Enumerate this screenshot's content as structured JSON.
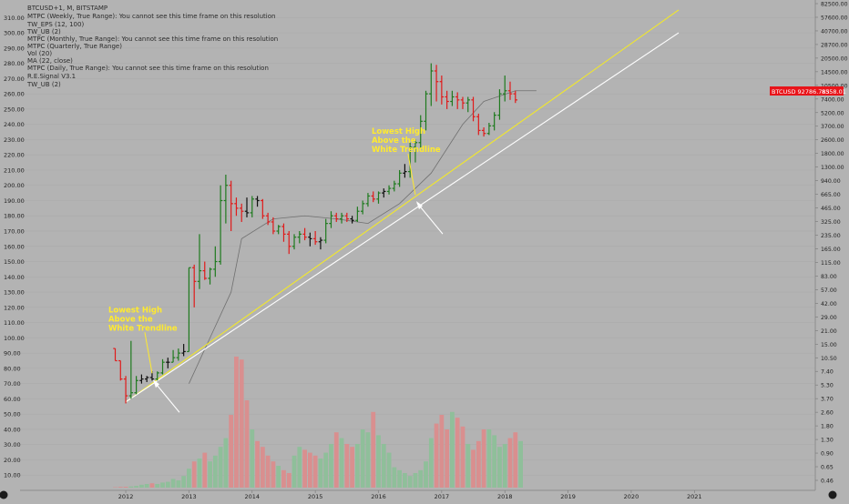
{
  "header": {
    "symbol_line": "BTCUSD+1, M, BITSTAMP",
    "indicators": [
      "MTPC (Weekly, True Range): You cannot see this time frame on this resolution",
      "TW_EPS (12, 100)",
      "TW_UB (2)",
      "MTPC (Monthly, True Range): You cannot see this time frame on this resolution",
      "MTPC (Quarterly, True Range)",
      "Vol (20)",
      "MA (22, close)",
      "MTPC (Daily, True Range): You cannot see this time frame on this resolution",
      "R.E.Signal V3.1",
      "TW_UB (2)"
    ]
  },
  "annotations": [
    {
      "text_lines": [
        "Lowest High",
        "Above the",
        "White Trendline"
      ],
      "anchor_month": 7,
      "anchor_left_value": 75
    },
    {
      "text_lines": [
        "Lowest High",
        "Above the",
        "White Trendline"
      ],
      "anchor_month": 57,
      "anchor_left_value": 192
    }
  ],
  "price_badge": {
    "label": "BTCUSD 92786.785",
    "value": "8358.01"
  },
  "colors": {
    "background": "#b3b3b3",
    "up": "#1e7a1e",
    "down": "#e01a1a",
    "neutral": "#111111",
    "yellow_trendline": "#f2e82a",
    "white_trendline": "#ffffff",
    "ma_line": "#707070",
    "volume_up": "#8fbf9a",
    "volume_down": "#d98f8f",
    "annotation_text": "#ffea2e",
    "badge_bg": "#e8141a"
  },
  "chart_data": {
    "type": "bar",
    "title": "BTCUSD+1, M, BITSTAMP",
    "x_ticks": [
      "2012",
      "2013",
      "2014",
      "2015",
      "2016",
      "2017",
      "2018",
      "2019",
      "2020",
      "2021"
    ],
    "x_tick_months": [
      2,
      14,
      26,
      38,
      50,
      62,
      74,
      86,
      98,
      110
    ],
    "left_axis": {
      "range": [
        0,
        310
      ],
      "ticks": [
        10,
        20,
        30,
        40,
        50,
        60,
        70,
        80,
        90,
        100,
        110,
        120,
        130,
        140,
        150,
        160,
        170,
        180,
        190,
        200,
        210,
        220,
        230,
        240,
        250,
        260,
        270,
        280,
        290,
        300,
        310
      ]
    },
    "right_axis": {
      "scale": "log",
      "labels": [
        "82500.00",
        "57600.00",
        "40700.00",
        "28700.00",
        "20500.00",
        "14500.00",
        "10500.00",
        "7400.00",
        "5200.00",
        "3700.00",
        "2600.00",
        "1800.00",
        "1300.00",
        "940.00",
        "665.00",
        "465.00",
        "325.00",
        "235.00",
        "165.00",
        "115.00",
        "83.00",
        "57.00",
        "42.00",
        "29.00",
        "21.00",
        "15.00",
        "10.50",
        "7.40",
        "5.30",
        "3.70",
        "2.60",
        "1.80",
        "1.30",
        "0.90",
        "0.65",
        "0.46"
      ]
    },
    "yellow_trendline": {
      "points": [
        [
          2,
          58
        ],
        [
          107,
          315
        ]
      ]
    },
    "white_trendline": {
      "points": [
        [
          2,
          58
        ],
        [
          107,
          300
        ]
      ]
    },
    "ma_22": {
      "points": [
        [
          14,
          70
        ],
        [
          18,
          100
        ],
        [
          22,
          130
        ],
        [
          24,
          165
        ],
        [
          30,
          178
        ],
        [
          36,
          180
        ],
        [
          42,
          178
        ],
        [
          48,
          175
        ],
        [
          54,
          188
        ],
        [
          60,
          208
        ],
        [
          66,
          240
        ],
        [
          70,
          255
        ],
        [
          76,
          262
        ],
        [
          80,
          262
        ]
      ]
    },
    "candles": [
      {
        "o": 93,
        "h": 93,
        "l": 85,
        "c": 85
      },
      {
        "o": 85,
        "h": 85,
        "l": 72,
        "c": 73
      },
      {
        "o": 73,
        "h": 75,
        "l": 57,
        "c": 62
      },
      {
        "o": 62,
        "h": 98,
        "l": 60,
        "c": 64
      },
      {
        "o": 64,
        "h": 75,
        "l": 63,
        "c": 72
      },
      {
        "o": 72,
        "h": 76,
        "l": 70,
        "c": 73
      },
      {
        "o": 73,
        "h": 75,
        "l": 71,
        "c": 74
      },
      {
        "o": 74,
        "h": 78,
        "l": 72,
        "c": 73
      },
      {
        "o": 73,
        "h": 78,
        "l": 72,
        "c": 77
      },
      {
        "o": 77,
        "h": 86,
        "l": 76,
        "c": 84
      },
      {
        "o": 84,
        "h": 87,
        "l": 80,
        "c": 84
      },
      {
        "o": 84,
        "h": 92,
        "l": 84,
        "c": 87
      },
      {
        "o": 87,
        "h": 93,
        "l": 85,
        "c": 90
      },
      {
        "o": 90,
        "h": 96,
        "l": 88,
        "c": 91
      },
      {
        "o": 91,
        "h": 146,
        "l": 91,
        "c": 146
      },
      {
        "o": 146,
        "h": 148,
        "l": 120,
        "c": 137
      },
      {
        "o": 137,
        "h": 168,
        "l": 132,
        "c": 144
      },
      {
        "o": 144,
        "h": 150,
        "l": 138,
        "c": 139
      },
      {
        "o": 139,
        "h": 146,
        "l": 135,
        "c": 145
      },
      {
        "o": 145,
        "h": 160,
        "l": 140,
        "c": 150
      },
      {
        "o": 150,
        "h": 200,
        "l": 148,
        "c": 190
      },
      {
        "o": 190,
        "h": 207,
        "l": 175,
        "c": 200
      },
      {
        "o": 200,
        "h": 203,
        "l": 170,
        "c": 188
      },
      {
        "o": 188,
        "h": 192,
        "l": 180,
        "c": 185
      },
      {
        "o": 185,
        "h": 188,
        "l": 176,
        "c": 183
      },
      {
        "o": 183,
        "h": 192,
        "l": 179,
        "c": 182
      },
      {
        "o": 182,
        "h": 193,
        "l": 179,
        "c": 191
      },
      {
        "o": 191,
        "h": 193,
        "l": 186,
        "c": 190
      },
      {
        "o": 190,
        "h": 191,
        "l": 178,
        "c": 180
      },
      {
        "o": 180,
        "h": 182,
        "l": 174,
        "c": 176
      },
      {
        "o": 176,
        "h": 179,
        "l": 168,
        "c": 170
      },
      {
        "o": 170,
        "h": 174,
        "l": 168,
        "c": 173
      },
      {
        "o": 173,
        "h": 175,
        "l": 163,
        "c": 168
      },
      {
        "o": 168,
        "h": 170,
        "l": 155,
        "c": 160
      },
      {
        "o": 160,
        "h": 168,
        "l": 158,
        "c": 166
      },
      {
        "o": 166,
        "h": 170,
        "l": 162,
        "c": 168
      },
      {
        "o": 168,
        "h": 172,
        "l": 164,
        "c": 166
      },
      {
        "o": 166,
        "h": 169,
        "l": 160,
        "c": 165
      },
      {
        "o": 165,
        "h": 170,
        "l": 161,
        "c": 163
      },
      {
        "o": 163,
        "h": 166,
        "l": 158,
        "c": 164
      },
      {
        "o": 164,
        "h": 178,
        "l": 162,
        "c": 175
      },
      {
        "o": 175,
        "h": 183,
        "l": 172,
        "c": 180
      },
      {
        "o": 180,
        "h": 182,
        "l": 176,
        "c": 178
      },
      {
        "o": 178,
        "h": 182,
        "l": 175,
        "c": 180
      },
      {
        "o": 180,
        "h": 182,
        "l": 176,
        "c": 178
      },
      {
        "o": 178,
        "h": 180,
        "l": 175,
        "c": 177
      },
      {
        "o": 177,
        "h": 186,
        "l": 176,
        "c": 183
      },
      {
        "o": 183,
        "h": 190,
        "l": 181,
        "c": 188
      },
      {
        "o": 188,
        "h": 195,
        "l": 186,
        "c": 193
      },
      {
        "o": 193,
        "h": 196,
        "l": 189,
        "c": 191
      },
      {
        "o": 191,
        "h": 196,
        "l": 188,
        "c": 195
      },
      {
        "o": 195,
        "h": 198,
        "l": 192,
        "c": 196
      },
      {
        "o": 196,
        "h": 200,
        "l": 194,
        "c": 198
      },
      {
        "o": 198,
        "h": 203,
        "l": 196,
        "c": 201
      },
      {
        "o": 201,
        "h": 210,
        "l": 199,
        "c": 208
      },
      {
        "o": 208,
        "h": 214,
        "l": 205,
        "c": 209
      },
      {
        "o": 209,
        "h": 228,
        "l": 205,
        "c": 225
      },
      {
        "o": 225,
        "h": 230,
        "l": 215,
        "c": 228
      },
      {
        "o": 228,
        "h": 246,
        "l": 224,
        "c": 242
      },
      {
        "o": 242,
        "h": 262,
        "l": 236,
        "c": 260
      },
      {
        "o": 260,
        "h": 280,
        "l": 252,
        "c": 275
      },
      {
        "o": 275,
        "h": 279,
        "l": 255,
        "c": 268
      },
      {
        "o": 268,
        "h": 272,
        "l": 253,
        "c": 258
      },
      {
        "o": 258,
        "h": 262,
        "l": 250,
        "c": 255
      },
      {
        "o": 255,
        "h": 262,
        "l": 252,
        "c": 258
      },
      {
        "o": 258,
        "h": 261,
        "l": 250,
        "c": 256
      },
      {
        "o": 256,
        "h": 258,
        "l": 250,
        "c": 254
      },
      {
        "o": 254,
        "h": 258,
        "l": 248,
        "c": 256
      },
      {
        "o": 256,
        "h": 258,
        "l": 242,
        "c": 245
      },
      {
        "o": 245,
        "h": 247,
        "l": 233,
        "c": 236
      },
      {
        "o": 236,
        "h": 238,
        "l": 232,
        "c": 234
      },
      {
        "o": 234,
        "h": 241,
        "l": 233,
        "c": 239
      },
      {
        "o": 239,
        "h": 248,
        "l": 236,
        "c": 246
      },
      {
        "o": 246,
        "h": 263,
        "l": 243,
        "c": 260
      },
      {
        "o": 260,
        "h": 272,
        "l": 255,
        "c": 262
      },
      {
        "o": 262,
        "h": 268,
        "l": 256,
        "c": 260
      },
      {
        "o": 260,
        "h": 262,
        "l": 254,
        "c": 256
      }
    ],
    "volume": [
      0.3,
      0.5,
      0.6,
      0.8,
      1.2,
      2.0,
      2.5,
      3.0,
      2.5,
      3.5,
      4.0,
      6.0,
      5.0,
      8.0,
      13,
      18,
      20,
      24,
      18,
      22,
      28,
      34,
      50,
      90,
      88,
      60,
      40,
      32,
      28,
      22,
      18,
      15,
      12,
      10,
      22,
      28,
      26,
      24,
      22,
      20,
      24,
      30,
      38,
      34,
      30,
      28,
      30,
      40,
      38,
      52,
      36,
      30,
      24,
      14,
      12,
      10,
      8,
      10,
      12,
      18,
      34,
      44,
      50,
      40,
      52,
      48,
      42,
      30,
      26,
      32,
      40,
      40,
      36,
      28,
      30,
      34,
      38,
      32
    ]
  }
}
